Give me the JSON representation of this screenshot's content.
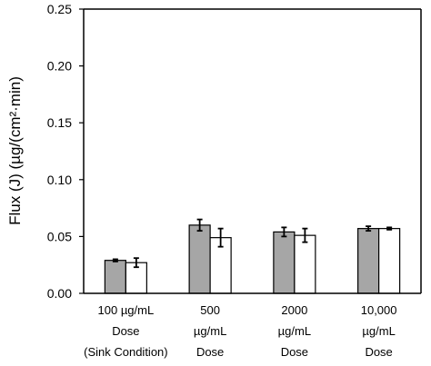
{
  "chart_data": {
    "type": "bar",
    "title": "",
    "xlabel": "",
    "ylabel": "Flux (J) (µg/(cm²·min)",
    "ylim": [
      0,
      0.25
    ],
    "yticks": [
      "0.00",
      "0.05",
      "0.10",
      "0.15",
      "0.20",
      "0.25"
    ],
    "grid": false,
    "legend": "none",
    "categories": [
      {
        "lines": [
          "100 µg/mL",
          "Dose",
          "(Sink Condition)"
        ]
      },
      {
        "lines": [
          "500",
          "µg/mL",
          "Dose"
        ]
      },
      {
        "lines": [
          "2000",
          "µg/mL",
          "Dose"
        ]
      },
      {
        "lines": [
          "10,000",
          "µg/mL",
          "Dose"
        ]
      }
    ],
    "series": [
      {
        "fill": "#a6a6a6",
        "values": [
          0.029,
          0.06,
          0.054,
          0.057
        ],
        "errors": [
          0.001,
          0.005,
          0.004,
          0.002
        ]
      },
      {
        "fill": "#ffffff",
        "values": [
          0.027,
          0.049,
          0.051,
          0.057
        ],
        "errors": [
          0.004,
          0.008,
          0.006,
          0.001
        ]
      }
    ]
  }
}
